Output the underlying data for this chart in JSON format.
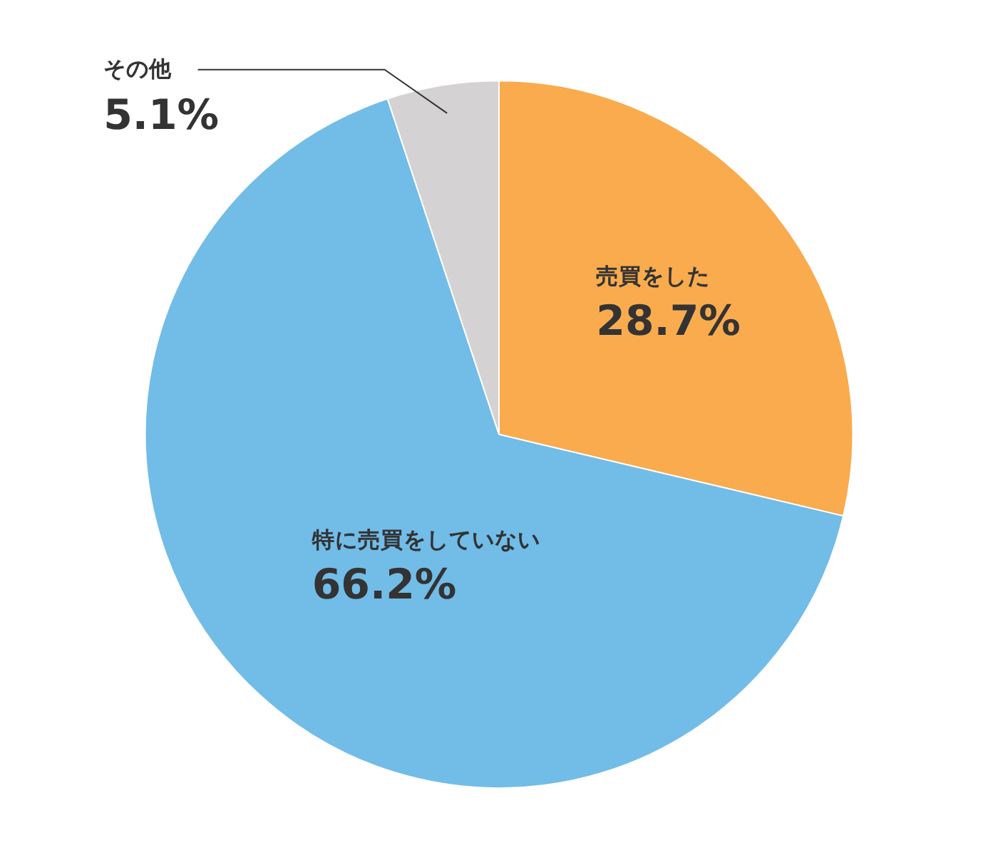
{
  "chart_data": {
    "type": "pie",
    "categories": [
      "売買をした",
      "特に売買をしていない",
      "その他"
    ],
    "values": [
      28.7,
      66.2,
      5.1
    ],
    "colors": [
      "#f9ab4e",
      "#72bce8",
      "#d4d2d3"
    ],
    "value_labels": [
      "28.7%",
      "66.2%",
      "5.1%"
    ]
  }
}
